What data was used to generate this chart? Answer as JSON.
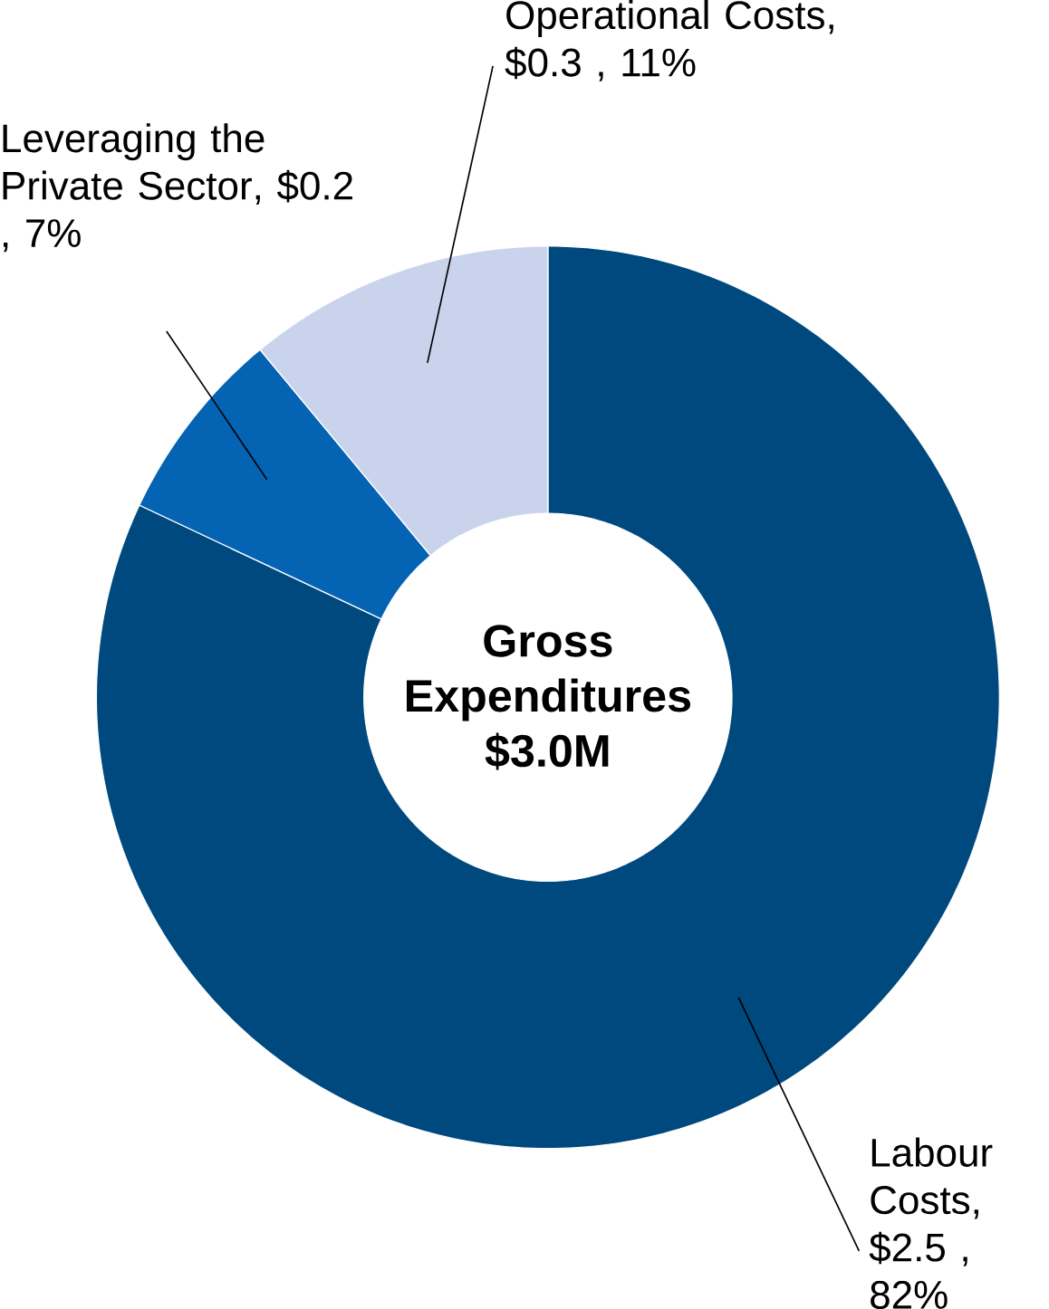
{
  "chart_data": {
    "type": "donut",
    "title": "Gross Expenditures $3.0M",
    "categories": [
      "Labour Costs",
      "Leveraging the Private Sector",
      "Operational Costs"
    ],
    "values": [
      82,
      7,
      11
    ],
    "value_labels": [
      ", $2.5 , 82%",
      ", $0.2 , 7%",
      ",  $0.3 , 11%"
    ],
    "colors": [
      "#00497e",
      "#0563b4",
      "#c9d3ec"
    ]
  }
}
